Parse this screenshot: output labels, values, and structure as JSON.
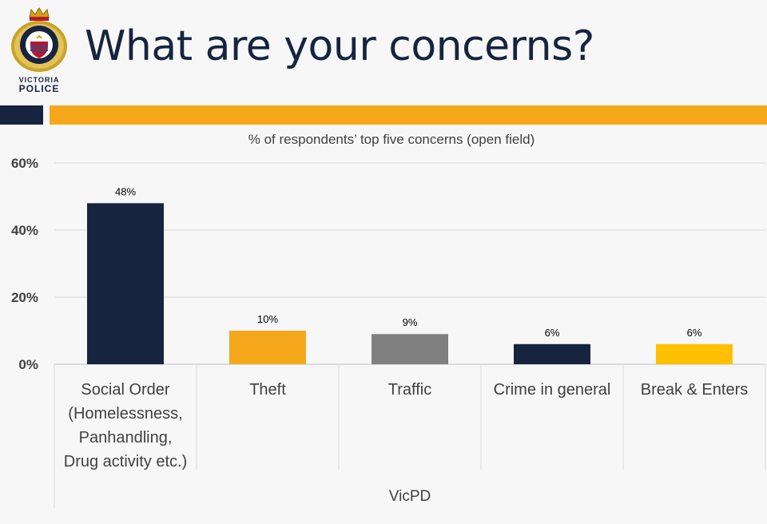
{
  "header": {
    "title": "What are your concerns?",
    "logo": {
      "line1": "VICTORIA",
      "line2": "POLICE",
      "icon": "victoria-police-crest-icon",
      "colors": {
        "gold": "#d4a017",
        "red": "#b5192b",
        "navy": "#16243f"
      }
    }
  },
  "colors": {
    "navy": "#16243f",
    "orange": "#f6a81d",
    "gray": "#808080",
    "yellow": "#ffc000",
    "background": "#f7f7f7"
  },
  "chart_data": {
    "type": "bar",
    "title": "% of respondents’ top five concerns (open field)",
    "group_label": "VicPD",
    "categories": [
      [
        "Social Order",
        "(Homelessness,",
        "Panhandling,",
        "Drug activity etc.)"
      ],
      [
        "Theft"
      ],
      [
        "Traffic"
      ],
      [
        "Crime in general"
      ],
      [
        "Break & Enters"
      ]
    ],
    "values": [
      48,
      10,
      9,
      6,
      6
    ],
    "data_labels": [
      "48%",
      "10%",
      "9%",
      "6%",
      "6%"
    ],
    "bar_colors": [
      "#16243f",
      "#f6a81d",
      "#808080",
      "#16243f",
      "#ffc000"
    ],
    "ylim": [
      0,
      60
    ],
    "yticks": [
      0,
      20,
      40,
      60
    ],
    "ytick_labels": [
      "0%",
      "20%",
      "40%",
      "60%"
    ],
    "grid": true,
    "legend": "none"
  }
}
